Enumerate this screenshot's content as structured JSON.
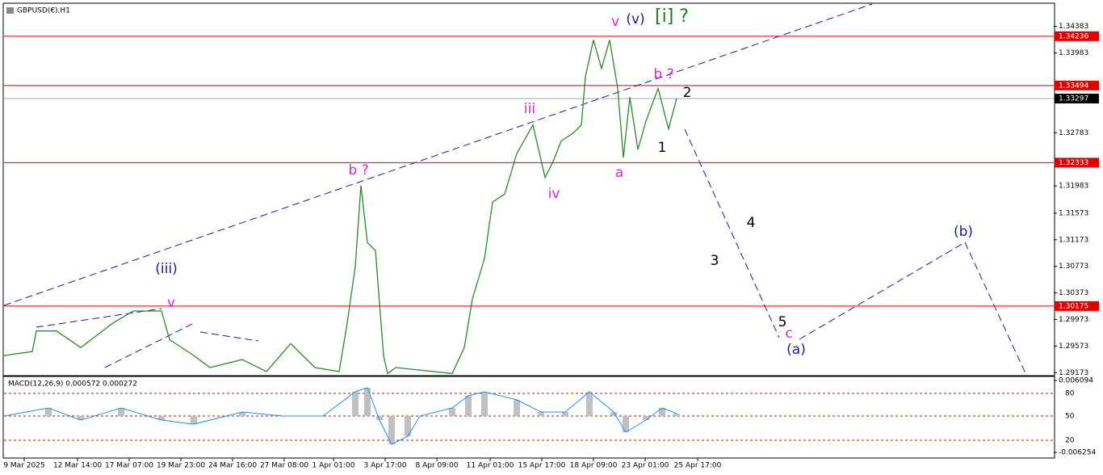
{
  "chart_data": {
    "type": "line",
    "title": "GBPUSD(€),H1",
    "color": "#2a8a2a",
    "x": [
      0,
      35,
      40,
      65,
      95,
      135,
      160,
      195,
      205,
      235,
      255,
      295,
      325,
      355,
      385,
      415,
      425,
      435,
      442,
      450,
      460,
      470,
      475,
      485,
      555,
      570,
      580,
      595,
      605,
      620,
      635,
      655,
      670,
      680,
      690,
      705,
      715,
      720,
      730,
      740,
      750,
      760,
      767,
      775,
      785,
      795,
      810,
      823,
      833
    ],
    "values": [
      1.2943,
      1.2949,
      1.298,
      1.298,
      1.2955,
      1.2992,
      1.301,
      1.301,
      1.2967,
      1.2943,
      1.2925,
      1.2937,
      1.2919,
      1.2961,
      1.2925,
      1.2919,
      1.2992,
      1.3077,
      1.3199,
      1.3113,
      1.3101,
      1.2943,
      1.2916,
      1.2925,
      1.2916,
      1.2955,
      1.3028,
      1.3089,
      1.3174,
      1.3186,
      1.3247,
      1.329,
      1.3211,
      1.3235,
      1.3266,
      1.3278,
      1.329,
      1.3363,
      1.3418,
      1.3375,
      1.3418,
      1.3345,
      1.3241,
      1.3332,
      1.3253,
      1.3296,
      1.3345,
      1.3284,
      1.333
    ],
    "xlim": [
      0,
      1300
    ],
    "xticks": [
      {
        "value": 25,
        "label": "9 Mar 2025"
      },
      {
        "value": 91,
        "label": "12 Mar 14:00"
      },
      {
        "value": 155,
        "label": "17 Mar 07:00"
      },
      {
        "value": 219,
        "label": "19 Mar 23:00"
      },
      {
        "value": 283,
        "label": "24 Mar 16:00"
      },
      {
        "value": 347,
        "label": "27 Mar 08:00"
      },
      {
        "value": 408,
        "label": "1 Apr 01:00"
      },
      {
        "value": 472,
        "label": "3 Apr 17:00"
      },
      {
        "value": 536,
        "label": "8 Apr 09:00"
      },
      {
        "value": 602,
        "label": "11 Apr 01:00"
      },
      {
        "value": 666,
        "label": "15 Apr 17:00"
      },
      {
        "value": 730,
        "label": "18 Apr 09:00"
      },
      {
        "value": 794,
        "label": "23 Apr 01:00"
      },
      {
        "value": 859,
        "label": "25 Apr 17:00"
      }
    ],
    "ylim": [
      1.2914,
      1.3472
    ],
    "yticks": [
      1.34383,
      1.33983,
      1.32783,
      1.31983,
      1.31573,
      1.31173,
      1.30773,
      1.30373,
      1.29973,
      1.29573,
      1.29173
    ],
    "levels": [
      1.34236,
      1.33494,
      1.32333,
      1.30175
    ],
    "level_color": "#e00000",
    "current_price": 1.33297,
    "annotations": [
      {
        "text": "v",
        "color": "#e020e0"
      },
      {
        "text": "(v)",
        "color": "#1a1aa0"
      },
      {
        "text": "[i] ?",
        "color": "#1f7a1f"
      },
      {
        "text": "b ?",
        "color": "#e020e0"
      },
      {
        "text": "2",
        "color": "#000000"
      },
      {
        "text": "iii",
        "color": "#e020e0"
      },
      {
        "text": "1",
        "color": "#000000"
      },
      {
        "text": "a",
        "color": "#e020e0"
      },
      {
        "text": "iv",
        "color": "#e020e0"
      },
      {
        "text": "b ?",
        "color": "#e020e0"
      },
      {
        "text": "(iii)",
        "color": "#1a1aa0"
      },
      {
        "text": "v",
        "color": "#e020e0"
      },
      {
        "text": "4",
        "color": "#000000"
      },
      {
        "text": "3",
        "color": "#000000"
      },
      {
        "text": "5",
        "color": "#000000"
      },
      {
        "text": "c",
        "color": "#e020e0"
      },
      {
        "text": "(a)",
        "color": "#1a1aa0"
      },
      {
        "text": "(b)",
        "color": "#1a1aa0"
      }
    ],
    "macd": {
      "label": "MACD(12,26,9) 0.000572 0.000272",
      "color": "#1e90ff",
      "x": [
        0,
        55,
        95,
        145,
        195,
        235,
        295,
        345,
        395,
        435,
        450,
        465,
        480,
        500,
        515,
        555,
        575,
        595,
        635,
        665,
        695,
        725,
        755,
        770,
        795,
        815,
        833
      ],
      "values": [
        0,
        0.00139,
        -0.00069,
        0.00139,
        -0.00069,
        -0.00139,
        0.00069,
        0,
        0,
        0.00416,
        0.00485,
        -0.00069,
        -0.00485,
        -0.00347,
        0,
        0.00139,
        0.00347,
        0.00416,
        0.00277,
        0.00069,
        0.00069,
        0.00416,
        0.00069,
        -0.00277,
        -0.00069,
        0.00139,
        0.00042
      ],
      "ylim": [
        -0.0072,
        0.00665
      ],
      "yticks": [
        0.006094,
        -0.006254
      ],
      "levels": [
        80,
        50,
        20
      ]
    }
  }
}
